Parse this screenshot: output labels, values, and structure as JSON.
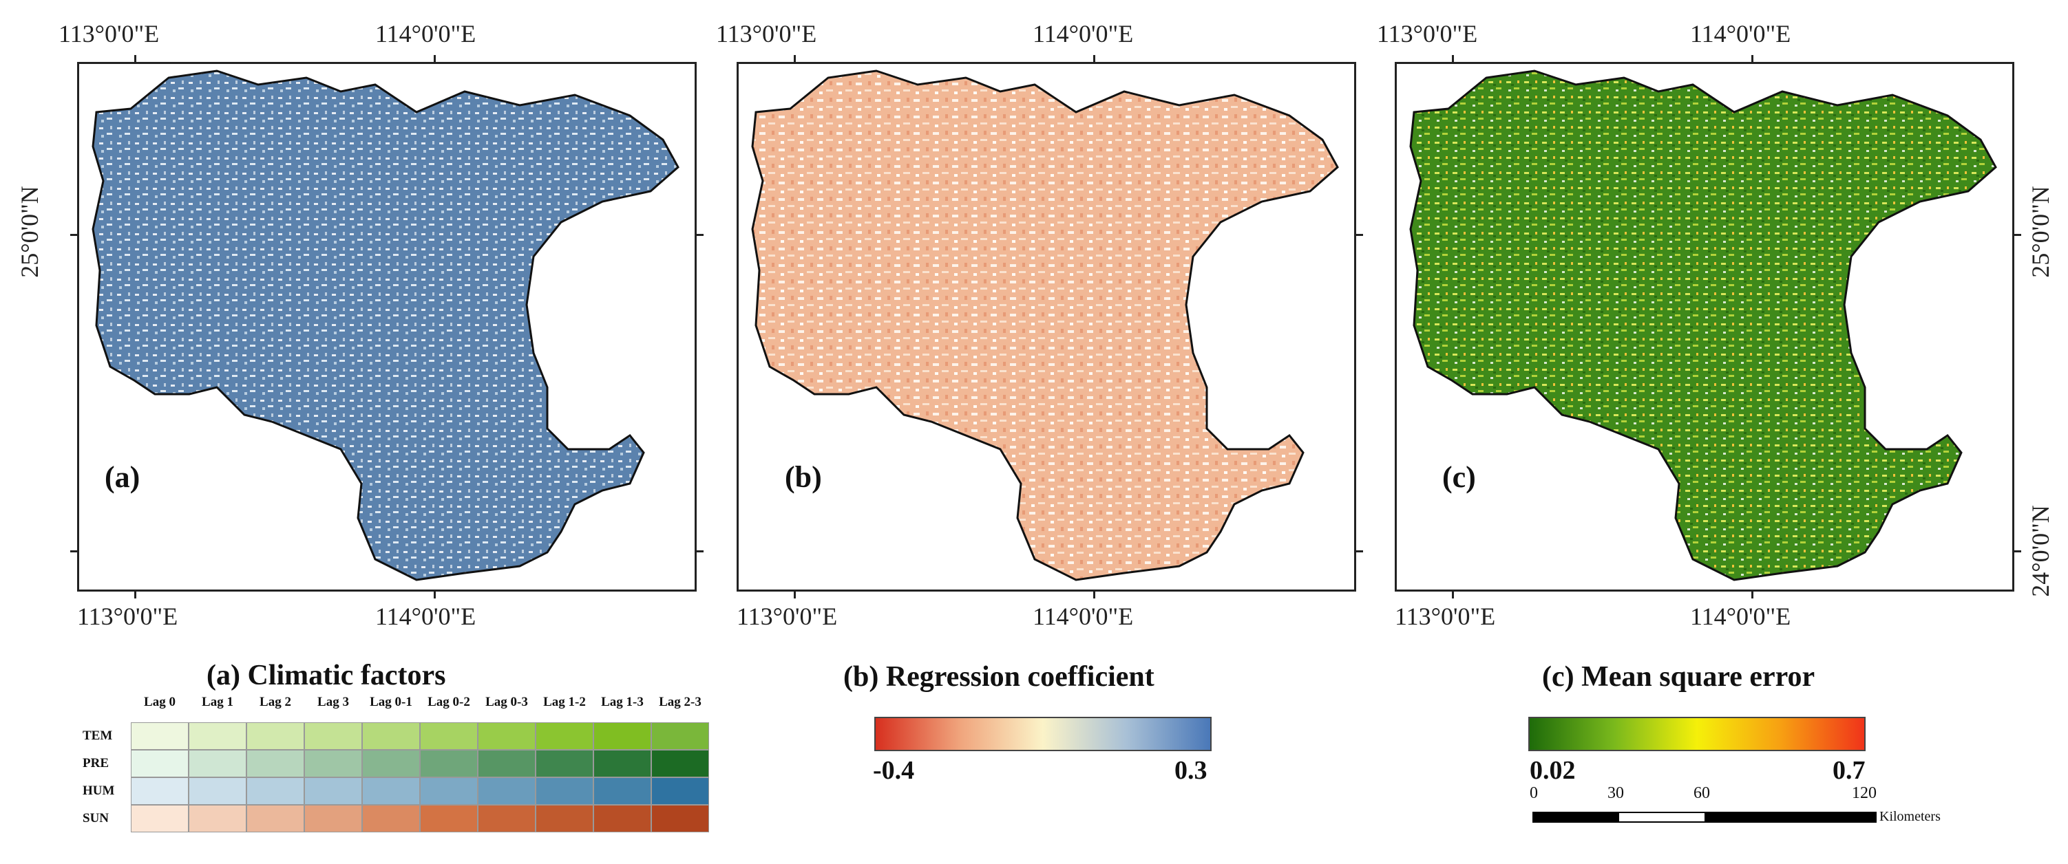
{
  "coords": {
    "lon113": "113°0'0\"E",
    "lon114": "114°0'0\"E",
    "lat25": "25°0'0\"N",
    "lat24": "24°0'0\"N"
  },
  "panels": [
    {
      "label": "(a)",
      "title": "(a) Climatic factors",
      "fill": "#5b82ad",
      "speckle": "#ffffff"
    },
    {
      "label": "(b)",
      "title": "(b) Regression coefficient",
      "fill": "#f1b896",
      "speckle": "#fdf3ea"
    },
    {
      "label": "(c)",
      "title": "(c) Mean square error",
      "fill": "#3f8a1a",
      "speckle": "#d8e65a"
    }
  ],
  "legend_a": {
    "lags": [
      "Lag 0",
      "Lag 1",
      "Lag 2",
      "Lag 3",
      "Lag 0-1",
      "Lag 0-2",
      "Lag 0-3",
      "Lag 1-2",
      "Lag 1-3",
      "Lag 2-3"
    ],
    "rows": [
      {
        "name": "TEM",
        "colors": [
          "#eef7df",
          "#e0f0c6",
          "#d2e9ad",
          "#c4e294",
          "#b5da7b",
          "#a7d362",
          "#99cc49",
          "#8bc530",
          "#80be22",
          "#7ab73a"
        ]
      },
      {
        "name": "PRE",
        "colors": [
          "#e6f5e9",
          "#cfe6d3",
          "#b7d6bd",
          "#9fc6a6",
          "#87b690",
          "#6fa67a",
          "#579664",
          "#3f864e",
          "#2b7738",
          "#1c6b24"
        ]
      },
      {
        "name": "HUM",
        "colors": [
          "#dceaf2",
          "#c9dde9",
          "#b6d0e0",
          "#a3c3d7",
          "#90b6ce",
          "#7da9c5",
          "#6a9cbc",
          "#578fb3",
          "#4482aa",
          "#2f73a1"
        ]
      },
      {
        "name": "SUN",
        "colors": [
          "#fbe6d6",
          "#f3cfb8",
          "#ebb89b",
          "#e3a17e",
          "#db8a61",
          "#d37344",
          "#c96538",
          "#c05a2e",
          "#b84f26",
          "#b0441e"
        ]
      }
    ]
  },
  "legend_b": {
    "min": "-0.4",
    "max": "0.3",
    "colors": [
      "#d7301f",
      "#f0a47c",
      "#fbf3c8",
      "#a8c0d6",
      "#4a78b8"
    ]
  },
  "legend_c": {
    "min": "0.02",
    "max": "0.7",
    "colors": [
      "#1e6b0a",
      "#79b81c",
      "#f5f00a",
      "#f7a012",
      "#f0341a"
    ]
  },
  "scalebar": {
    "labels": [
      "0",
      "30",
      "60",
      "120"
    ],
    "unit": "Kilometers"
  }
}
